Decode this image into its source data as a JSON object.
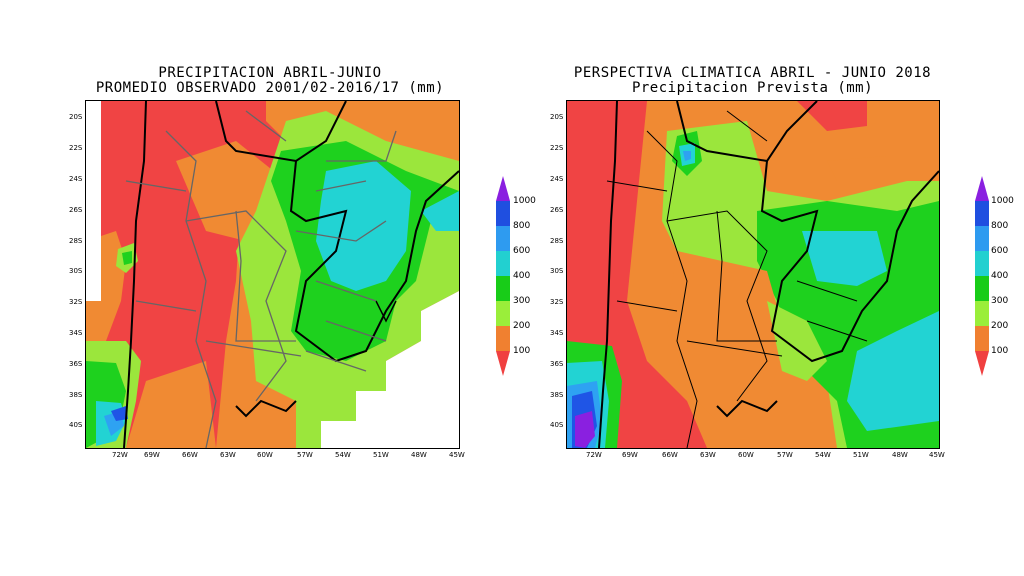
{
  "left_panel": {
    "title_line1": "PRECIPITACION ABRIL-JUNIO",
    "title_line2": "PROMEDIO OBSERVADO 2001/02-2016/17 (mm)"
  },
  "right_panel": {
    "title_line1": "PERSPECTIVA CLIMATICA ABRIL - JUNIO 2018",
    "title_line2": "Precipitacion Prevista (mm)"
  },
  "latitude_ticks": [
    "20S",
    "22S",
    "24S",
    "26S",
    "28S",
    "30S",
    "32S",
    "34S",
    "36S",
    "38S",
    "40S"
  ],
  "longitude_ticks": [
    "72W",
    "69W",
    "66W",
    "63W",
    "60W",
    "57W",
    "54W",
    "51W",
    "48W",
    "45W"
  ],
  "colorbar": {
    "labels": [
      "1000",
      "800",
      "600",
      "400",
      "300",
      "200",
      "100"
    ],
    "colors": [
      "#8a1fe0",
      "#1f4fe0",
      "#2e9bf0",
      "#22d0d0",
      "#18cc18",
      "#9aee3a",
      "#f08030",
      "#f04040"
    ]
  },
  "palette": {
    "red": "#f04444",
    "orange": "#f08a33",
    "lightgreen": "#9be63c",
    "green": "#1ed11e",
    "cyan": "#22d3d3",
    "lightblue": "#2ea2f2",
    "blue": "#1f55e6",
    "purple": "#8a20e0"
  }
}
